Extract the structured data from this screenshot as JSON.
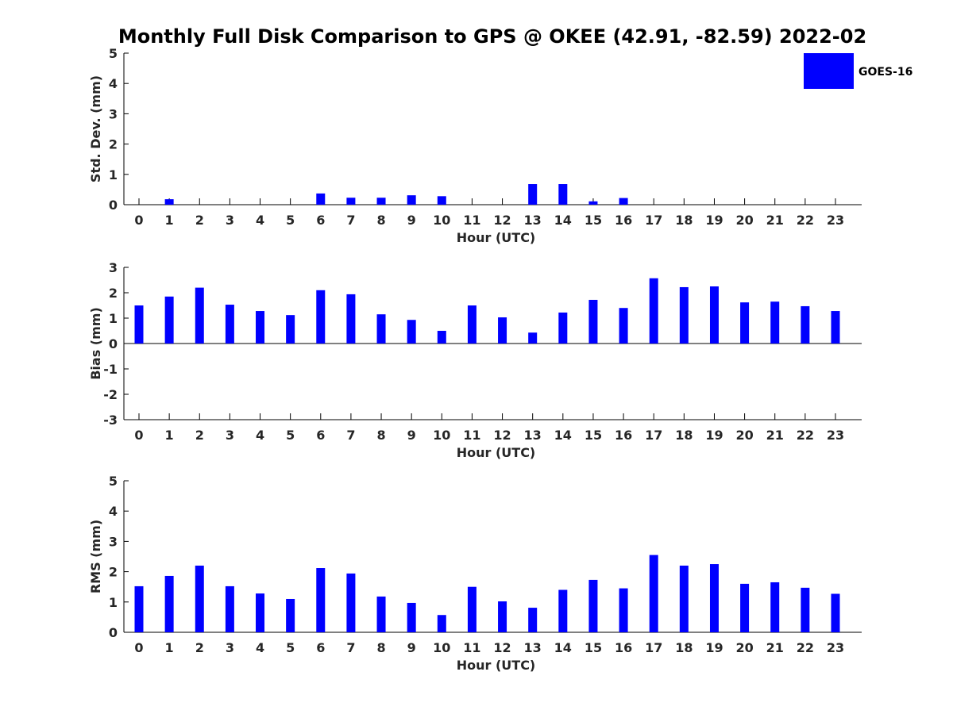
{
  "title": "Monthly Full Disk Comparison to GPS @ OKEE (42.91, -82.59) 2022-02",
  "legend": {
    "label": "GOES-16",
    "color": "#0000ff",
    "placement": "top-right"
  },
  "chart_data": [
    {
      "type": "bar",
      "ylabel": "Std. Dev. (mm)",
      "xlabel": "Hour (UTC)",
      "ylim": [
        0,
        5
      ],
      "yticks": [
        0,
        1,
        2,
        3,
        4,
        5
      ],
      "categories": [
        "0",
        "1",
        "2",
        "3",
        "4",
        "5",
        "6",
        "7",
        "8",
        "9",
        "10",
        "11",
        "12",
        "13",
        "14",
        "15",
        "16",
        "17",
        "18",
        "19",
        "20",
        "21",
        "22",
        "23"
      ],
      "series": [
        {
          "name": "GOES-16",
          "color": "#0000ff",
          "values": [
            0,
            0.18,
            0,
            0,
            0,
            0,
            0.37,
            0.23,
            0.23,
            0.31,
            0.28,
            0,
            0,
            0.68,
            0.68,
            0.11,
            0.22,
            0,
            0,
            0,
            0,
            0,
            0,
            0
          ]
        }
      ]
    },
    {
      "type": "bar",
      "ylabel": "Bias (mm)",
      "xlabel": "Hour (UTC)",
      "ylim": [
        -3,
        3
      ],
      "yticks": [
        -3,
        -2,
        -1,
        0,
        1,
        2,
        3
      ],
      "categories": [
        "0",
        "1",
        "2",
        "3",
        "4",
        "5",
        "6",
        "7",
        "8",
        "9",
        "10",
        "11",
        "12",
        "13",
        "14",
        "15",
        "16",
        "17",
        "18",
        "19",
        "20",
        "21",
        "22",
        "23"
      ],
      "series": [
        {
          "name": "GOES-16",
          "color": "#0000ff",
          "values": [
            1.5,
            1.85,
            2.2,
            1.53,
            1.28,
            1.12,
            2.1,
            1.94,
            1.15,
            0.93,
            0.5,
            1.5,
            1.03,
            0.43,
            1.22,
            1.72,
            1.4,
            2.57,
            2.22,
            2.25,
            1.62,
            1.65,
            1.47,
            1.28
          ]
        }
      ]
    },
    {
      "type": "bar",
      "ylabel": "RMS (mm)",
      "xlabel": "Hour (UTC)",
      "ylim": [
        0,
        5
      ],
      "yticks": [
        0,
        1,
        2,
        3,
        4,
        5
      ],
      "categories": [
        "0",
        "1",
        "2",
        "3",
        "4",
        "5",
        "6",
        "7",
        "8",
        "9",
        "10",
        "11",
        "12",
        "13",
        "14",
        "15",
        "16",
        "17",
        "18",
        "19",
        "20",
        "21",
        "22",
        "23"
      ],
      "series": [
        {
          "name": "GOES-16",
          "color": "#0000ff",
          "values": [
            1.52,
            1.86,
            2.2,
            1.52,
            1.28,
            1.1,
            2.12,
            1.94,
            1.18,
            0.97,
            0.57,
            1.5,
            1.02,
            0.81,
            1.4,
            1.73,
            1.45,
            2.55,
            2.2,
            2.25,
            1.6,
            1.65,
            1.47,
            1.27
          ]
        }
      ]
    }
  ]
}
